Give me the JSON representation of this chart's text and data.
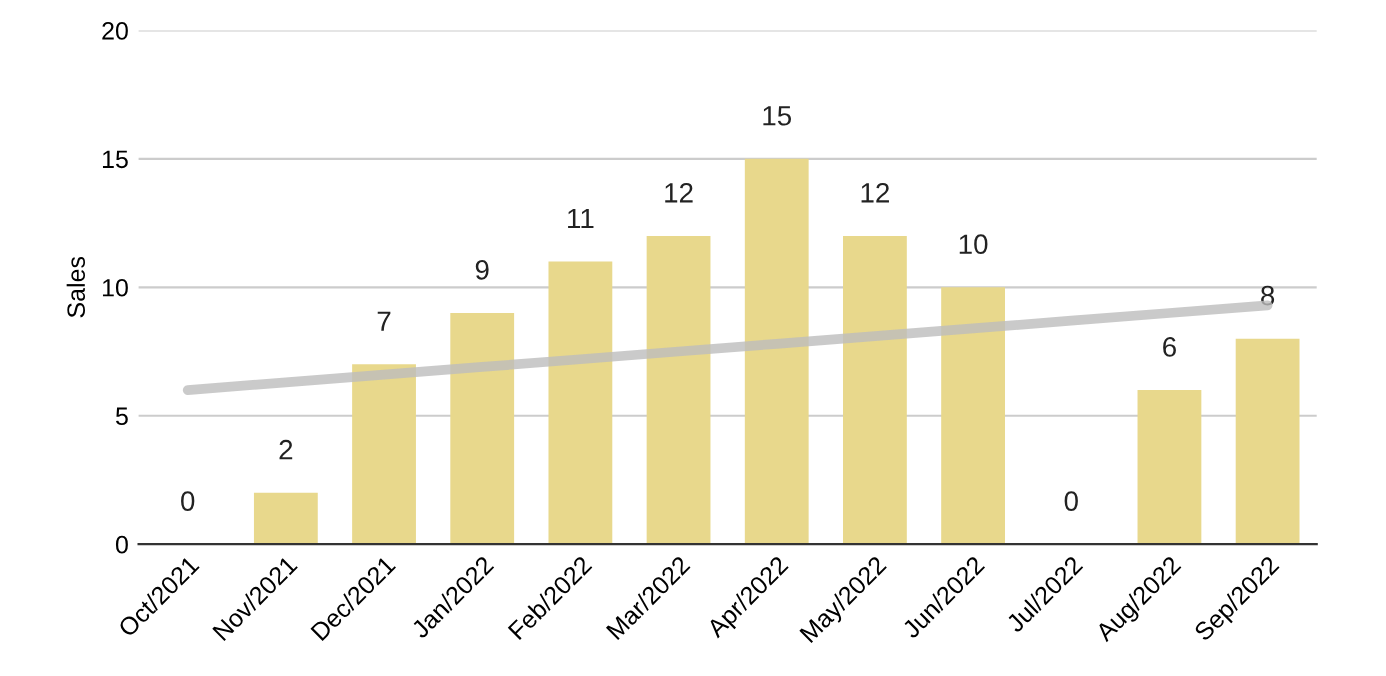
{
  "chart_data": {
    "type": "bar",
    "ylabel": "Sales",
    "categories": [
      "Oct/2021",
      "Nov/2021",
      "Dec/2021",
      "Jan/2022",
      "Feb/2022",
      "Mar/2022",
      "Apr/2022",
      "May/2022",
      "Jun/2022",
      "Jul/2022",
      "Aug/2022",
      "Sep/2022"
    ],
    "series": [
      {
        "color": "#e8d88c",
        "values": [
          0,
          2,
          7,
          9,
          11,
          12,
          15,
          12,
          10,
          0,
          6,
          8
        ],
        "value_labels": [
          "0",
          "2",
          "7",
          "9",
          "11",
          "12",
          "15",
          "12",
          "10",
          "0",
          "6",
          "8"
        ]
      },
      {
        "type": "line",
        "color": "#bdbdbd",
        "values": [
          6.0,
          6.3,
          6.6,
          6.9,
          7.2,
          7.5,
          7.8,
          8.1,
          8.4,
          8.7,
          9.0,
          9.3
        ]
      }
    ],
    "ylim": [
      0,
      20
    ],
    "yticks": [
      0,
      5,
      10,
      15,
      20
    ],
    "grid": "y"
  }
}
